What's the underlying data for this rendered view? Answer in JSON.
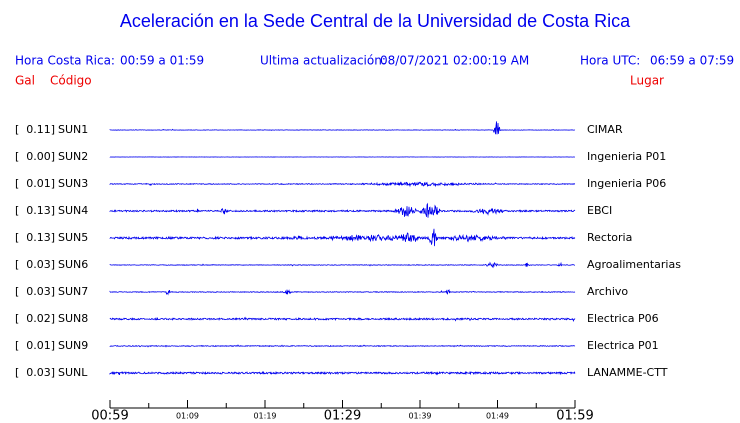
{
  "header": {
    "title": "Aceleración en la Sede Central de la Universidad de Costa Rica",
    "local_label": "Hora Costa Rica:",
    "local_range": "00:59 a 01:59",
    "update_label": "Ultima actualización:",
    "update_value": "08/07/2021 02:00:19 AM",
    "utc_label": "Hora UTC:",
    "utc_range": "06:59 a 07:59",
    "col_gal": "Gal",
    "col_code": "Código",
    "col_place": "Lugar"
  },
  "stations": [
    {
      "gal": "[  0.11]",
      "code": "SUN1",
      "place": "CIMAR"
    },
    {
      "gal": "[  0.00]",
      "code": "SUN2",
      "place": "Ingenieria P01"
    },
    {
      "gal": "[  0.01]",
      "code": "SUN3",
      "place": "Ingenieria P06"
    },
    {
      "gal": "[  0.13]",
      "code": "SUN4",
      "place": "EBCI"
    },
    {
      "gal": "[  0.13]",
      "code": "SUN5",
      "place": "Rectoria"
    },
    {
      "gal": "[  0.03]",
      "code": "SUN6",
      "place": "Agroalimentarias"
    },
    {
      "gal": "[  0.03]",
      "code": "SUN7",
      "place": "Archivo"
    },
    {
      "gal": "[  0.02]",
      "code": "SUN8",
      "place": "Electrica P06"
    },
    {
      "gal": "[  0.01]",
      "code": "SUN9",
      "place": "Electrica P01"
    },
    {
      "gal": "[  0.03]",
      "code": "SUNL",
      "place": "LANAMME-CTT"
    }
  ],
  "time_axis": {
    "ticks": [
      "00:59",
      "01:09",
      "01:19",
      "01:29",
      "01:39",
      "01:49",
      "01:59"
    ]
  }
}
